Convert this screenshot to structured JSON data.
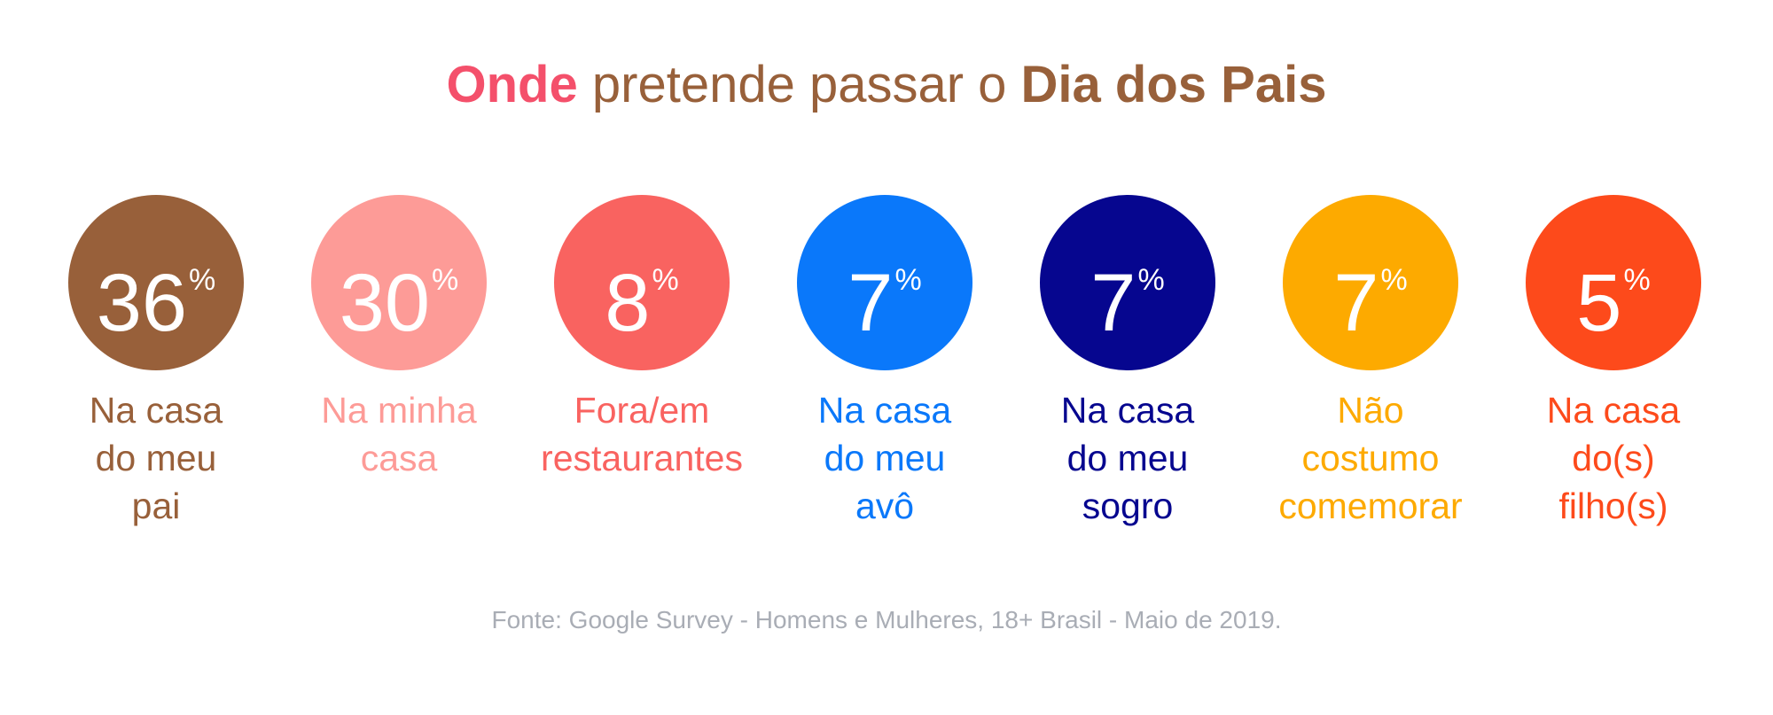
{
  "title": {
    "highlight": "Onde",
    "middle": "pretende passar o",
    "strong": "Dia dos Pais",
    "highlight_color": "#f4506b",
    "color": "#98603a"
  },
  "items": [
    {
      "value": 36,
      "unit": "%",
      "label": [
        "Na casa",
        "do meu",
        "pai"
      ],
      "color": "#98603a"
    },
    {
      "value": 30,
      "unit": "%",
      "label": [
        "Na minha",
        "casa"
      ],
      "color": "#fd9b97"
    },
    {
      "value": 8,
      "unit": "%",
      "label": [
        "Fora/em",
        "restaurantes"
      ],
      "color": "#f96360"
    },
    {
      "value": 7,
      "unit": "%",
      "label": [
        "Na casa",
        "do meu",
        "avô"
      ],
      "color": "#0a78fa"
    },
    {
      "value": 7,
      "unit": "%",
      "label": [
        "Na casa",
        "do meu",
        "sogro"
      ],
      "color": "#06068f"
    },
    {
      "value": 7,
      "unit": "%",
      "label": [
        "Não",
        "costumo",
        "comemorar"
      ],
      "color": "#fdaa00"
    },
    {
      "value": 5,
      "unit": "%",
      "label": [
        "Na casa",
        "do(s)",
        "filho(s)"
      ],
      "color": "#fd4a1b"
    }
  ],
  "source": "Fonte: Google Survey - Homens e Mulheres, 18+ Brasil - Maio de 2019."
}
